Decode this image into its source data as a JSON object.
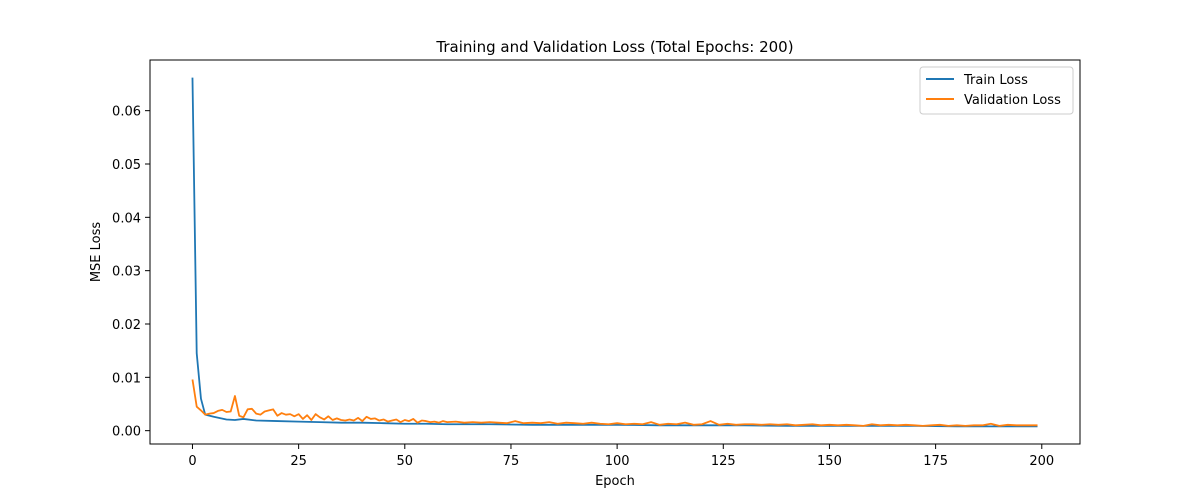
{
  "chart_data": {
    "type": "line",
    "title": "Training and Validation Loss (Total Epochs: 200)",
    "xlabel": "Epoch",
    "ylabel": "MSE Loss",
    "xlim": [
      -10,
      209
    ],
    "ylim": [
      -0.0025,
      0.0695
    ],
    "x_ticks": [
      0,
      25,
      50,
      75,
      100,
      125,
      150,
      175,
      200
    ],
    "y_ticks": [
      0.0,
      0.01,
      0.02,
      0.03,
      0.04,
      0.05,
      0.06
    ],
    "y_tick_labels": [
      "0.00",
      "0.01",
      "0.02",
      "0.03",
      "0.04",
      "0.05",
      "0.06"
    ],
    "grid": false,
    "legend_position": "top-right",
    "series": [
      {
        "name": "Train Loss",
        "color": "#1f77b4",
        "x": [
          0,
          1,
          2,
          3,
          5,
          8,
          10,
          12,
          15,
          20,
          25,
          30,
          35,
          40,
          45,
          50,
          55,
          60,
          70,
          80,
          90,
          100,
          110,
          120,
          130,
          140,
          150,
          160,
          170,
          180,
          190,
          199
        ],
        "values": [
          0.0662,
          0.0145,
          0.006,
          0.003,
          0.0026,
          0.0021,
          0.002,
          0.0022,
          0.0019,
          0.0018,
          0.0017,
          0.0016,
          0.0015,
          0.0015,
          0.0014,
          0.0013,
          0.0013,
          0.0012,
          0.0012,
          0.0011,
          0.0011,
          0.0011,
          0.001,
          0.001,
          0.001,
          0.0009,
          0.0009,
          0.0009,
          0.0009,
          0.0008,
          0.0008,
          0.0008
        ]
      },
      {
        "name": "Validation Loss",
        "color": "#ff7f0e",
        "x": [
          0,
          1,
          2,
          3,
          4,
          5,
          6,
          7,
          8,
          9,
          10,
          11,
          12,
          13,
          14,
          15,
          16,
          17,
          18,
          19,
          20,
          21,
          22,
          23,
          24,
          25,
          26,
          27,
          28,
          29,
          30,
          31,
          32,
          33,
          34,
          35,
          36,
          37,
          38,
          39,
          40,
          41,
          42,
          43,
          44,
          45,
          46,
          47,
          48,
          49,
          50,
          51,
          52,
          53,
          54,
          55,
          56,
          57,
          58,
          59,
          60,
          62,
          64,
          66,
          68,
          70,
          72,
          74,
          76,
          78,
          80,
          82,
          84,
          86,
          88,
          90,
          92,
          94,
          96,
          98,
          100,
          102,
          104,
          106,
          108,
          110,
          112,
          114,
          116,
          118,
          120,
          122,
          124,
          126,
          128,
          130,
          132,
          134,
          136,
          138,
          140,
          142,
          144,
          146,
          148,
          150,
          152,
          154,
          156,
          158,
          160,
          162,
          164,
          166,
          168,
          170,
          172,
          174,
          176,
          178,
          180,
          182,
          184,
          186,
          188,
          190,
          192,
          194,
          196,
          199
        ],
        "values": [
          0.0096,
          0.0045,
          0.0038,
          0.003,
          0.0032,
          0.0033,
          0.0037,
          0.0039,
          0.0035,
          0.0036,
          0.0065,
          0.0028,
          0.0025,
          0.004,
          0.0041,
          0.0032,
          0.003,
          0.0036,
          0.0038,
          0.004,
          0.0028,
          0.0033,
          0.003,
          0.0031,
          0.0027,
          0.0031,
          0.0022,
          0.0029,
          0.002,
          0.0031,
          0.0025,
          0.0021,
          0.0027,
          0.002,
          0.0023,
          0.002,
          0.0019,
          0.0021,
          0.0019,
          0.0024,
          0.0018,
          0.0026,
          0.0022,
          0.0023,
          0.0019,
          0.0021,
          0.0017,
          0.0019,
          0.0021,
          0.0016,
          0.002,
          0.0018,
          0.0022,
          0.0015,
          0.0019,
          0.0018,
          0.0016,
          0.0017,
          0.0015,
          0.0018,
          0.0016,
          0.0017,
          0.0015,
          0.0016,
          0.0015,
          0.0016,
          0.0015,
          0.0014,
          0.0018,
          0.0014,
          0.0015,
          0.0014,
          0.0016,
          0.0013,
          0.0015,
          0.0014,
          0.0013,
          0.0015,
          0.0013,
          0.0012,
          0.0014,
          0.0012,
          0.0013,
          0.0012,
          0.0016,
          0.0011,
          0.0013,
          0.0012,
          0.0015,
          0.0011,
          0.0012,
          0.0018,
          0.0011,
          0.0013,
          0.0011,
          0.0012,
          0.0012,
          0.0011,
          0.0012,
          0.0011,
          0.0012,
          0.001,
          0.0011,
          0.0012,
          0.001,
          0.0011,
          0.001,
          0.0011,
          0.001,
          0.0009,
          0.0012,
          0.001,
          0.0011,
          0.001,
          0.0011,
          0.001,
          0.0009,
          0.001,
          0.0011,
          0.0009,
          0.001,
          0.0009,
          0.001,
          0.001,
          0.0013,
          0.0009,
          0.0011,
          0.001,
          0.001,
          0.001
        ]
      }
    ]
  }
}
